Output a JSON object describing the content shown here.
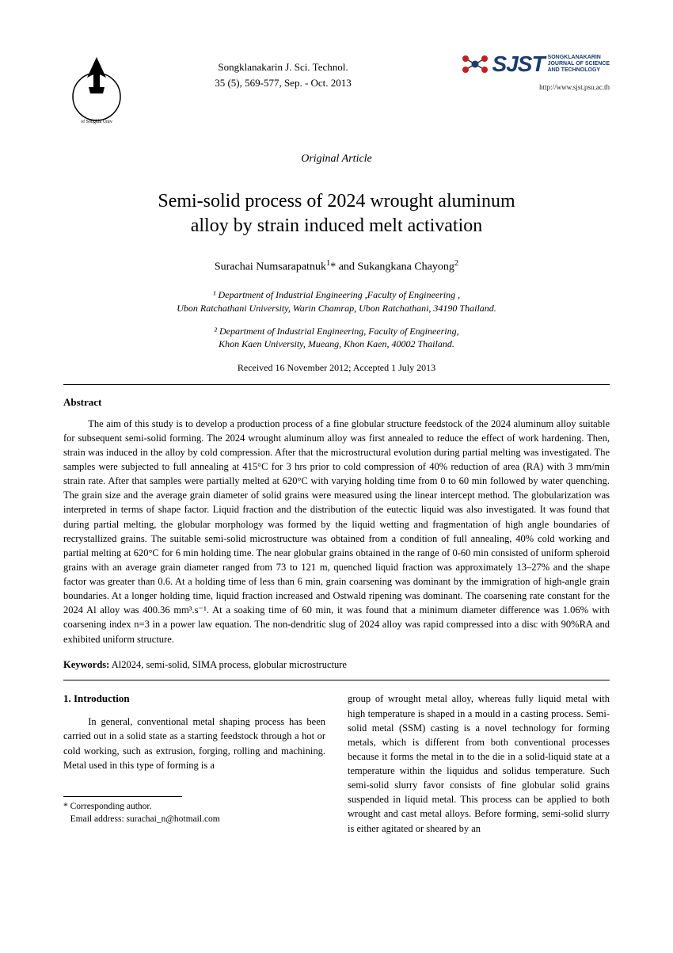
{
  "journal": {
    "name": "Songklanakarin J. Sci. Technol.",
    "issue": "35 (5), 569-577, Sep. - Oct. 2013",
    "url": "http://www.sjst.psu.ac.th",
    "logo_acronym": "SJST",
    "logo_full_line1": "SONGKLANAKARIN",
    "logo_full_line2": "JOURNAL OF SCIENCE",
    "logo_full_line3": "AND TECHNOLOGY",
    "logo_text_color": "#1a3d6d",
    "dot_colors": [
      "#c02020",
      "#c02020",
      "#1a3d6d",
      "#c02020",
      "#c02020"
    ]
  },
  "article": {
    "type": "Original Article",
    "title_line1": "Semi-solid process of 2024 wrought aluminum",
    "title_line2": "alloy by strain induced melt activation",
    "authors_html": "Surachai Numsarapatnuk<sup>1</sup>* and Sukangkana Chayong<sup>2</sup>",
    "affiliation1_line1": "¹ Department of Industrial Engineering ,Faculty of Engineering ,",
    "affiliation1_line2": "Ubon Ratchathani University, Warin Chamrap, Ubon  Ratchathani, 34190 Thailand.",
    "affiliation2_line1": "² Department of Industrial Engineering, Faculty of Engineering,",
    "affiliation2_line2": "Khon Kaen University, Mueang, Khon Kaen, 40002 Thailand.",
    "dates": "Received  16 November 2012; Accepted  1 July 2013"
  },
  "abstract": {
    "heading": "Abstract",
    "text": "The aim of this study is to develop a production process of a fine globular structure feedstock of the 2024 aluminum alloy suitable for subsequent semi-solid forming. The 2024 wrought aluminum alloy was first annealed to reduce the effect of work hardening. Then, strain was induced in the alloy by cold compression. After that the microstructural evolution during partial melting was investigated. The samples were subjected to full annealing at 415°C for 3 hrs prior to cold compression of 40% reduction of area (RA) with 3 mm/min strain rate. After that samples were partially melted at 620°C with varying holding time from 0 to 60 min followed by water quenching. The grain size and the average grain diameter of solid grains were measured using the linear intercept method. The globularization was interpreted in terms of shape factor. Liquid fraction and the distribution of the eutectic liquid was also investigated. It was found that during partial melting, the globular morphology was formed by the liquid wetting and fragmentation of high angle boundaries of recrystallized grains. The suitable semi-solid microstructure was obtained from a condition of full annealing, 40% cold working and partial melting at 620°C for 6 min holding time. The near globular grains obtained in the range of 0-60 min consisted of uniform spheroid grains with an average grain diameter ranged from 73 to 121 m, quenched liquid fraction was approximately 13–27% and the shape factor was greater than 0.6. At a holding time of less than 6 min, grain coarsening was dominant by the immigration of high-angle grain boundaries. At a longer holding time, liquid fraction increased and Ostwald ripening was dominant. The coarsening rate constant for the 2024 Al alloy was 400.36 mm³.s⁻¹. At a soaking time of 60 min, it was found that a minimum diameter difference was 1.06% with coarsening index n=3 in a power law equation. The non-dendritic slug of 2024 alloy was rapid compressed into a disc with 90%RA and exhibited uniform structure."
  },
  "keywords": {
    "label": "Keywords:",
    "text": " Al2024, semi-solid, SIMA process, globular microstructure"
  },
  "intro": {
    "heading": "1. Introduction",
    "col1_text": "In general, conventional metal shaping process has been carried out in a solid state as a starting feedstock through a hot or cold working, such as extrusion, forging, rolling and machining. Metal used in this type of forming is a",
    "col2_text": "group of wrought metal alloy, whereas fully liquid metal with high temperature is shaped in a mould in a casting process. Semi-solid metal (SSM) casting is a novel technology for forming metals, which is different from both conventional processes because it forms the metal in to the die in a solid-liquid state at a temperature within the liquidus and solidus temperature. Such semi-solid slurry favor consists of fine globular solid grains suspended in liquid metal. This process can be applied to both wrought and cast metal alloys. Before forming, semi-solid slurry is either agitated or sheared by an"
  },
  "corresponding": {
    "label": "* Corresponding author.",
    "email_label": "Email address:",
    "email": " surachai_n@hotmail.com"
  },
  "style": {
    "page_bg": "#ffffff",
    "text_color": "#000000",
    "rule_color": "#000000",
    "body_fontsize": 12.5,
    "title_fontsize": 24
  }
}
